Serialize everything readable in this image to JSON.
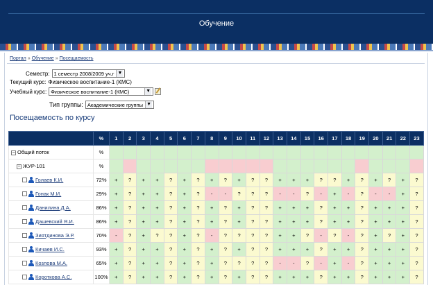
{
  "header": {
    "title": "Обучение"
  },
  "breadcrumb": [
    "Портал",
    "Обучение",
    "Посещаемость"
  ],
  "breadcrumb_sep": "»",
  "form": {
    "semester_label": "Семестр:",
    "semester_value": "1 семестр 2008/2009 уч.г",
    "current_course_label": "Текущий курс:",
    "current_course_value": "Физическое воспитание-1 (КМС)",
    "study_course_label": "Учебный курс:",
    "study_course_value": "Физическое воспитание-1 (КМС)",
    "group_type_label": "Тип группы:",
    "group_type_value": "Академические группы"
  },
  "section_title": "Посещаемость по курсу",
  "table": {
    "pct_header": "%",
    "lessons": [
      "1",
      "2",
      "3",
      "4",
      "5",
      "6",
      "7",
      "8",
      "9",
      "10",
      "11",
      "12",
      "13",
      "14",
      "15",
      "16",
      "17",
      "18",
      "19",
      "20",
      "21",
      "22",
      "23"
    ],
    "groups": [
      {
        "toggle": "−",
        "name": "Общий поток",
        "pct": "%",
        "colors": [
          "g",
          "g",
          "g",
          "g",
          "g",
          "g",
          "g",
          "g",
          "g",
          "g",
          "g",
          "g",
          "g",
          "g",
          "g",
          "g",
          "g",
          "g",
          "g",
          "g",
          "g",
          "g",
          "g"
        ]
      },
      {
        "toggle": "−",
        "name": "ЖУР-101",
        "pct": "%",
        "colors": [
          "g",
          "r",
          "g",
          "g",
          "g",
          "g",
          "g",
          "r",
          "r",
          "r",
          "r",
          "r",
          "g",
          "g",
          "g",
          "g",
          "g",
          "g",
          "r",
          "g",
          "g",
          "g",
          "r"
        ]
      }
    ],
    "students": [
      {
        "name": "Голаев К.И.",
        "pct": "72%",
        "marks": [
          "+",
          "?",
          "+",
          "+",
          "?",
          "+",
          "?",
          "+",
          "?",
          "+",
          "?",
          "?",
          "+",
          "+",
          "+",
          "?",
          "?",
          "+",
          "?",
          "+",
          "?",
          "+",
          "?"
        ],
        "colors": [
          "g",
          "y",
          "g",
          "g",
          "y",
          "g",
          "y",
          "g",
          "y",
          "g",
          "y",
          "y",
          "g",
          "g",
          "g",
          "y",
          "y",
          "g",
          "y",
          "g",
          "y",
          "g",
          "y"
        ]
      },
      {
        "name": "Гонак М.И.",
        "pct": "29%",
        "marks": [
          "+",
          "?",
          "+",
          "+",
          "?",
          "+",
          "?",
          "-",
          "-",
          "?",
          "?",
          "?",
          "-",
          "-",
          "?",
          "-",
          "+",
          "-",
          "?",
          "-",
          "-",
          "+",
          "?"
        ],
        "colors": [
          "g",
          "y",
          "g",
          "g",
          "y",
          "g",
          "y",
          "r",
          "r",
          "y",
          "y",
          "y",
          "r",
          "r",
          "y",
          "r",
          "g",
          "r",
          "y",
          "r",
          "r",
          "g",
          "y"
        ]
      },
      {
        "name": "Данилина Д.А.",
        "pct": "86%",
        "marks": [
          "+",
          "?",
          "+",
          "+",
          "?",
          "+",
          "?",
          "+",
          "?",
          "+",
          "?",
          "?",
          "+",
          "+",
          "+",
          "?",
          "+",
          "+",
          "?",
          "+",
          "+",
          "+",
          "?"
        ],
        "colors": [
          "g",
          "y",
          "g",
          "g",
          "y",
          "g",
          "y",
          "g",
          "y",
          "g",
          "y",
          "y",
          "g",
          "g",
          "g",
          "y",
          "g",
          "g",
          "y",
          "g",
          "g",
          "g",
          "y"
        ]
      },
      {
        "name": "Дашевский Я.И.",
        "pct": "86%",
        "marks": [
          "+",
          "?",
          "+",
          "+",
          "?",
          "+",
          "?",
          "+",
          "?",
          "+",
          "?",
          "?",
          "+",
          "+",
          "+",
          "?",
          "+",
          "+",
          "?",
          "+",
          "+",
          "+",
          "?"
        ],
        "colors": [
          "g",
          "y",
          "g",
          "g",
          "y",
          "g",
          "y",
          "g",
          "y",
          "g",
          "y",
          "y",
          "g",
          "g",
          "g",
          "y",
          "g",
          "g",
          "y",
          "g",
          "g",
          "g",
          "y"
        ]
      },
      {
        "name": "Зиятдинова Э.Р.",
        "pct": "70%",
        "marks": [
          "-",
          "?",
          "+",
          "?",
          "?",
          "+",
          "?",
          "-",
          "?",
          "?",
          "?",
          "?",
          "+",
          "+",
          "?",
          "-",
          "?",
          "-",
          "?",
          "+",
          "?",
          "+",
          "?"
        ],
        "colors": [
          "r",
          "y",
          "g",
          "y",
          "y",
          "g",
          "y",
          "r",
          "y",
          "y",
          "y",
          "y",
          "g",
          "g",
          "y",
          "r",
          "y",
          "r",
          "y",
          "g",
          "y",
          "g",
          "y"
        ]
      },
      {
        "name": "Кичаев И.С.",
        "pct": "93%",
        "marks": [
          "+",
          "?",
          "+",
          "+",
          "?",
          "+",
          "?",
          "+",
          "?",
          "+",
          "?",
          "?",
          "+",
          "+",
          "+",
          "?",
          "+",
          "+",
          "?",
          "+",
          "+",
          "+",
          "?"
        ],
        "colors": [
          "g",
          "y",
          "g",
          "g",
          "y",
          "g",
          "y",
          "g",
          "y",
          "g",
          "y",
          "y",
          "g",
          "g",
          "g",
          "y",
          "g",
          "g",
          "y",
          "g",
          "g",
          "g",
          "y"
        ]
      },
      {
        "name": "Козлова М.А.",
        "pct": "65%",
        "marks": [
          "+",
          "?",
          "+",
          "+",
          "?",
          "+",
          "?",
          "+",
          "?",
          "?",
          "?",
          "?",
          "-",
          "-",
          "?",
          "-",
          "+",
          "-",
          "?",
          "+",
          "+",
          "+",
          "?"
        ],
        "colors": [
          "g",
          "y",
          "g",
          "g",
          "y",
          "g",
          "y",
          "g",
          "y",
          "y",
          "y",
          "y",
          "r",
          "r",
          "y",
          "r",
          "g",
          "r",
          "y",
          "g",
          "g",
          "g",
          "y"
        ]
      },
      {
        "name": "Короткова А.С.",
        "pct": "100%",
        "marks": [
          "+",
          "?",
          "+",
          "+",
          "?",
          "+",
          "?",
          "+",
          "?",
          "+",
          "?",
          "?",
          "+",
          "+",
          "+",
          "?",
          "+",
          "+",
          "?",
          "+",
          "+",
          "+",
          "?"
        ],
        "colors": [
          "g",
          "y",
          "g",
          "g",
          "y",
          "g",
          "y",
          "g",
          "y",
          "g",
          "y",
          "y",
          "g",
          "g",
          "g",
          "y",
          "g",
          "g",
          "y",
          "g",
          "g",
          "g",
          "y"
        ]
      }
    ]
  }
}
